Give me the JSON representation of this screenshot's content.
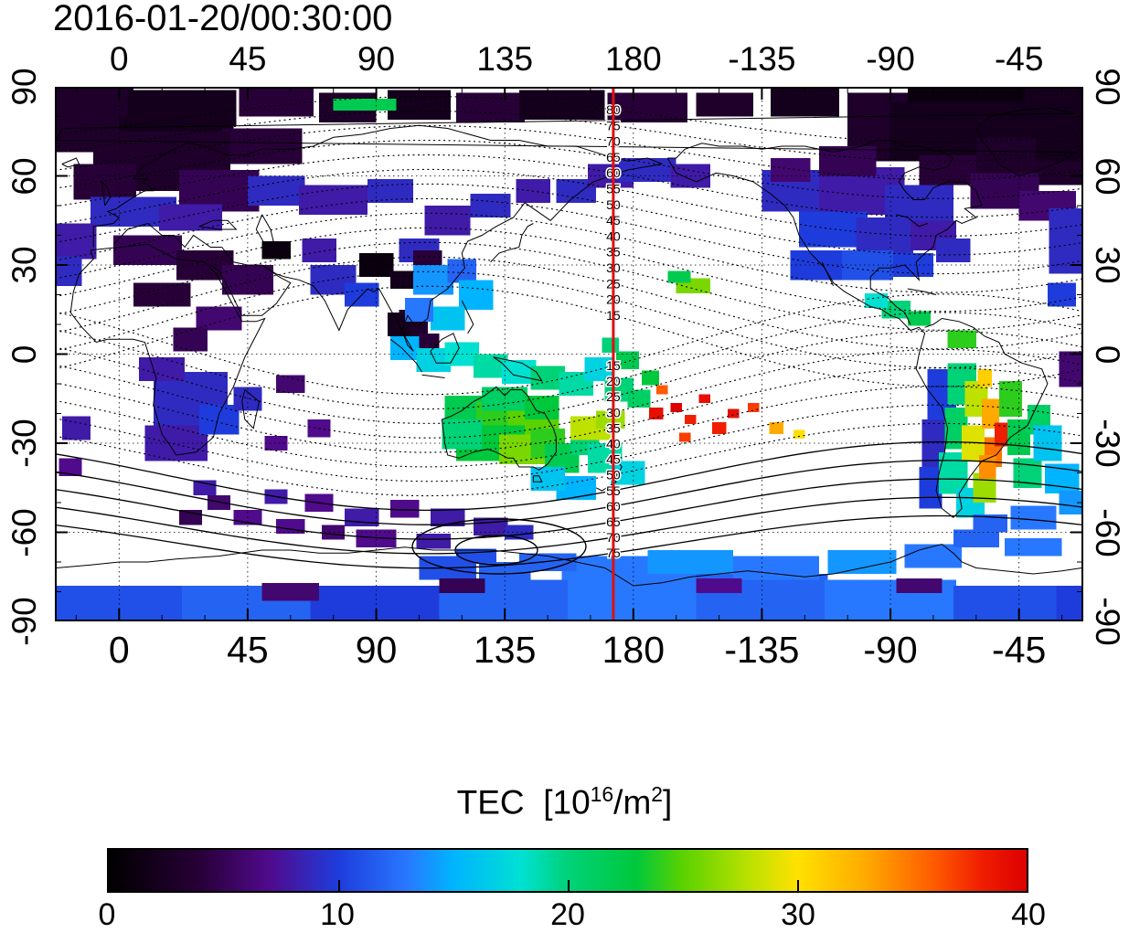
{
  "title": "2016-01-20/00:30:00",
  "axes": {
    "lon_tick_labels": [
      "0",
      "45",
      "90",
      "135",
      "180",
      "-135",
      "-90",
      "-45"
    ],
    "lon_tick_values": [
      0,
      45,
      90,
      135,
      180,
      225,
      270,
      315
    ],
    "lat_tick_labels": [
      "90",
      "60",
      "30",
      "0",
      "-30",
      "-60",
      "-90"
    ],
    "lat_tick_values": [
      90,
      60,
      30,
      0,
      -30,
      -60,
      -90
    ]
  },
  "red_line": {
    "lon": 173,
    "color": "#dd1111"
  },
  "contours": {
    "north_labels": [
      80,
      75,
      70,
      65,
      60,
      55,
      50,
      45,
      40,
      35,
      30,
      25,
      20,
      15
    ],
    "south_labels": [
      15,
      20,
      25,
      30,
      35,
      40,
      45,
      50,
      55,
      60,
      65,
      70,
      75
    ],
    "label_lon": 173
  },
  "colorbar": {
    "title_prefix": "TEC  [10",
    "title_sup1": "16",
    "title_mid": "/m",
    "title_sup2": "2",
    "title_suffix": "]",
    "ticks": [
      "0",
      "10",
      "20",
      "30",
      "40"
    ],
    "tick_values": [
      0,
      10,
      20,
      30,
      40
    ],
    "min": 0,
    "max": 40
  },
  "chart_data": {
    "type": "heatmap",
    "title": "2016-01-20/00:30:00",
    "units": "TEC [10^16/m^2]",
    "lon_range": [
      -22.5,
      337.5
    ],
    "lat_range": [
      -90,
      90
    ],
    "lon_ticks": [
      0,
      45,
      90,
      135,
      180,
      -135,
      -90,
      -45
    ],
    "lat_ticks": [
      90,
      60,
      30,
      0,
      -30,
      -60,
      -90
    ],
    "colorbar_range": [
      0,
      40
    ],
    "colormap_stops": [
      [
        0,
        "#000000"
      ],
      [
        4,
        "#280038"
      ],
      [
        7,
        "#500a8c"
      ],
      [
        10,
        "#1e3cdc"
      ],
      [
        13,
        "#2878ff"
      ],
      [
        15,
        "#00b4ff"
      ],
      [
        18,
        "#00e1d2"
      ],
      [
        20,
        "#00d278"
      ],
      [
        23,
        "#00c83c"
      ],
      [
        25,
        "#5ad200"
      ],
      [
        28,
        "#bee100"
      ],
      [
        30,
        "#ffe100"
      ],
      [
        33,
        "#ffaa00"
      ],
      [
        36,
        "#ff5a00"
      ],
      [
        38,
        "#f01e00"
      ],
      [
        40,
        "#dc0000"
      ]
    ],
    "patch_format": [
      "lon_center_deg",
      "lat_center_deg",
      "width_deg",
      "height_deg",
      "tec_value"
    ],
    "patches": [
      [
        -10,
        84,
        30,
        12,
        3
      ],
      [
        22,
        83,
        38,
        12,
        2
      ],
      [
        55,
        85,
        26,
        10,
        4
      ],
      [
        80,
        83,
        20,
        10,
        3
      ],
      [
        105,
        84,
        22,
        10,
        2
      ],
      [
        130,
        83,
        24,
        10,
        4
      ],
      [
        155,
        84,
        30,
        10,
        2
      ],
      [
        185,
        83,
        28,
        10,
        4
      ],
      [
        212,
        84,
        20,
        8,
        3
      ],
      [
        240,
        85,
        24,
        10,
        2
      ],
      [
        268,
        83,
        26,
        10,
        3
      ],
      [
        300,
        83,
        48,
        14,
        1
      ],
      [
        330,
        84,
        26,
        12,
        2
      ],
      [
        86,
        84,
        22,
        4,
        22
      ],
      [
        -12,
        75,
        28,
        14,
        3
      ],
      [
        20,
        74,
        40,
        12,
        2
      ],
      [
        50,
        70,
        28,
        12,
        4
      ],
      [
        15,
        65,
        48,
        20,
        3
      ],
      [
        35,
        55,
        28,
        14,
        5
      ],
      [
        -5,
        58,
        22,
        12,
        4
      ],
      [
        270,
        72,
        30,
        14,
        3
      ],
      [
        300,
        75,
        60,
        20,
        2
      ],
      [
        320,
        65,
        40,
        16,
        3
      ],
      [
        335,
        72,
        28,
        14,
        2
      ],
      [
        290,
        62,
        20,
        10,
        4
      ],
      [
        310,
        55,
        24,
        12,
        5
      ],
      [
        325,
        50,
        20,
        10,
        6
      ],
      [
        5,
        48,
        30,
        10,
        9
      ],
      [
        25,
        46,
        22,
        9,
        8
      ],
      [
        -15,
        38,
        14,
        12,
        8
      ],
      [
        -18,
        28,
        10,
        10,
        9
      ],
      [
        55,
        55,
        20,
        10,
        9
      ],
      [
        75,
        52,
        24,
        10,
        8
      ],
      [
        95,
        55,
        16,
        8,
        9
      ],
      [
        115,
        45,
        16,
        10,
        8
      ],
      [
        130,
        50,
        14,
        8,
        9
      ],
      [
        145,
        55,
        12,
        8,
        8
      ],
      [
        160,
        55,
        14,
        8,
        9
      ],
      [
        172,
        60,
        16,
        8,
        8
      ],
      [
        185,
        62,
        20,
        8,
        9
      ],
      [
        200,
        60,
        14,
        8,
        8
      ],
      [
        70,
        35,
        12,
        8,
        8
      ],
      [
        105,
        35,
        14,
        8,
        9
      ],
      [
        75,
        25,
        16,
        10,
        9
      ],
      [
        85,
        20,
        12,
        8,
        10
      ],
      [
        10,
        35,
        24,
        10,
        5
      ],
      [
        30,
        30,
        20,
        10,
        4
      ],
      [
        45,
        25,
        18,
        10,
        5
      ],
      [
        15,
        20,
        20,
        8,
        4
      ],
      [
        35,
        12,
        16,
        8,
        6
      ],
      [
        55,
        35,
        10,
        6,
        1
      ],
      [
        90,
        30,
        12,
        8,
        1
      ],
      [
        100,
        25,
        10,
        6,
        2
      ],
      [
        25,
        5,
        12,
        8,
        5
      ],
      [
        103,
        8,
        10,
        14,
        3
      ],
      [
        108,
        2,
        8,
        10,
        4
      ],
      [
        98,
        10,
        8,
        8,
        2
      ],
      [
        108,
        30,
        10,
        10,
        4
      ],
      [
        25,
        -15,
        26,
        18,
        9
      ],
      [
        20,
        -30,
        22,
        12,
        8
      ],
      [
        35,
        -22,
        14,
        10,
        10
      ],
      [
        15,
        -5,
        16,
        8,
        8
      ],
      [
        45,
        -15,
        10,
        8,
        9
      ],
      [
        30,
        -45,
        8,
        5,
        8
      ],
      [
        -15,
        -25,
        10,
        8,
        8
      ],
      [
        -17,
        -38,
        8,
        6,
        7
      ],
      [
        60,
        -10,
        10,
        6,
        6
      ],
      [
        70,
        -25,
        8,
        6,
        7
      ],
      [
        55,
        -30,
        8,
        5,
        7
      ],
      [
        110,
        25,
        14,
        10,
        14
      ],
      [
        120,
        28,
        10,
        8,
        12
      ],
      [
        125,
        20,
        12,
        10,
        15
      ],
      [
        115,
        12,
        12,
        8,
        16
      ],
      [
        105,
        15,
        10,
        8,
        13
      ],
      [
        100,
        2,
        10,
        8,
        15
      ],
      [
        110,
        -2,
        12,
        8,
        17
      ],
      [
        120,
        0,
        12,
        8,
        18
      ],
      [
        130,
        -4,
        12,
        8,
        19
      ],
      [
        140,
        -6,
        12,
        8,
        18
      ],
      [
        150,
        -8,
        12,
        8,
        20
      ],
      [
        160,
        -10,
        12,
        8,
        19
      ],
      [
        168,
        -5,
        10,
        8,
        17
      ],
      [
        175,
        -12,
        10,
        8,
        20
      ],
      [
        178,
        -2,
        8,
        6,
        22
      ],
      [
        172,
        3,
        6,
        5,
        20
      ],
      [
        182,
        -15,
        8,
        6,
        21
      ],
      [
        186,
        -8,
        6,
        5,
        23
      ],
      [
        125,
        -20,
        22,
        12,
        22
      ],
      [
        135,
        -22,
        20,
        12,
        24
      ],
      [
        145,
        -25,
        18,
        12,
        25
      ],
      [
        130,
        -30,
        24,
        12,
        23
      ],
      [
        142,
        -32,
        18,
        10,
        26
      ],
      [
        150,
        -30,
        12,
        10,
        24
      ],
      [
        120,
        -27,
        14,
        10,
        20
      ],
      [
        135,
        -15,
        16,
        8,
        21
      ],
      [
        148,
        -18,
        12,
        8,
        23
      ],
      [
        155,
        -35,
        12,
        10,
        22
      ],
      [
        163,
        -30,
        10,
        8,
        20
      ],
      [
        170,
        -35,
        12,
        10,
        19
      ],
      [
        178,
        -40,
        12,
        8,
        17
      ],
      [
        160,
        -45,
        14,
        8,
        15
      ],
      [
        150,
        -42,
        12,
        8,
        16
      ],
      [
        165,
        -25,
        14,
        8,
        28
      ],
      [
        172,
        -22,
        10,
        6,
        27
      ],
      [
        188,
        -20,
        5,
        4,
        39
      ],
      [
        195,
        -18,
        4,
        3,
        40
      ],
      [
        200,
        -22,
        4,
        3,
        38
      ],
      [
        205,
        -15,
        4,
        3,
        39
      ],
      [
        210,
        -25,
        5,
        4,
        38
      ],
      [
        198,
        -28,
        4,
        3,
        37
      ],
      [
        215,
        -20,
        4,
        3,
        39
      ],
      [
        190,
        -12,
        4,
        3,
        36
      ],
      [
        230,
        -25,
        5,
        4,
        33
      ],
      [
        238,
        -27,
        4,
        3,
        30
      ],
      [
        222,
        -18,
        4,
        3,
        37
      ],
      [
        201,
        23,
        12,
        5,
        26
      ],
      [
        196,
        26,
        8,
        4,
        22
      ],
      [
        240,
        55,
        30,
        14,
        9
      ],
      [
        260,
        55,
        30,
        16,
        8
      ],
      [
        280,
        50,
        24,
        14,
        9
      ],
      [
        250,
        42,
        24,
        12,
        10
      ],
      [
        268,
        40,
        20,
        12,
        9
      ],
      [
        285,
        40,
        16,
        10,
        8
      ],
      [
        245,
        30,
        20,
        10,
        10
      ],
      [
        262,
        30,
        18,
        10,
        11
      ],
      [
        278,
        30,
        14,
        8,
        10
      ],
      [
        292,
        35,
        12,
        8,
        9
      ],
      [
        255,
        65,
        20,
        10,
        5
      ],
      [
        235,
        62,
        14,
        8,
        6
      ],
      [
        332,
        38,
        13,
        22,
        9
      ],
      [
        334,
        -5,
        10,
        12,
        6
      ],
      [
        330,
        20,
        10,
        8,
        10
      ],
      [
        272,
        15,
        10,
        6,
        20
      ],
      [
        280,
        12,
        8,
        5,
        22
      ],
      [
        265,
        18,
        8,
        5,
        18
      ],
      [
        295,
        5,
        10,
        6,
        24
      ],
      [
        288,
        -15,
        10,
        20,
        10
      ],
      [
        285,
        -30,
        8,
        16,
        9
      ],
      [
        284,
        -45,
        8,
        14,
        10
      ],
      [
        295,
        -10,
        10,
        14,
        20
      ],
      [
        293,
        -25,
        8,
        14,
        21
      ],
      [
        292,
        -40,
        10,
        14,
        19
      ],
      [
        298,
        -50,
        10,
        10,
        17
      ],
      [
        300,
        -15,
        8,
        12,
        28
      ],
      [
        299,
        -30,
        8,
        12,
        29
      ],
      [
        303,
        -45,
        8,
        10,
        27
      ],
      [
        305,
        -20,
        6,
        10,
        33
      ],
      [
        306,
        -33,
        6,
        10,
        35
      ],
      [
        303,
        -8,
        5,
        6,
        31
      ],
      [
        309,
        -27,
        5,
        8,
        38
      ],
      [
        304,
        -38,
        6,
        8,
        34
      ],
      [
        312,
        -15,
        8,
        12,
        24
      ],
      [
        315,
        -28,
        8,
        12,
        22
      ],
      [
        318,
        -40,
        10,
        10,
        20
      ],
      [
        322,
        -22,
        8,
        10,
        21
      ],
      [
        325,
        -30,
        10,
        12,
        16
      ],
      [
        330,
        -42,
        12,
        10,
        15
      ],
      [
        335,
        -50,
        12,
        8,
        14
      ],
      [
        320,
        -55,
        16,
        8,
        13
      ],
      [
        305,
        -57,
        12,
        6,
        12
      ],
      [
        70,
        -50,
        10,
        6,
        7
      ],
      [
        85,
        -55,
        12,
        6,
        8
      ],
      [
        100,
        -52,
        10,
        6,
        7
      ],
      [
        115,
        -55,
        12,
        6,
        8
      ],
      [
        130,
        -58,
        12,
        6,
        8
      ],
      [
        90,
        -62,
        14,
        6,
        7
      ],
      [
        110,
        -63,
        12,
        5,
        8
      ],
      [
        60,
        -58,
        10,
        5,
        7
      ],
      [
        140,
        -60,
        10,
        5,
        9
      ],
      [
        75,
        -60,
        8,
        5,
        6
      ],
      [
        55,
        -48,
        8,
        5,
        8
      ],
      [
        45,
        -55,
        10,
        5,
        7
      ],
      [
        35,
        -50,
        8,
        5,
        6
      ],
      [
        25,
        -55,
        8,
        5,
        5
      ],
      [
        0,
        -84,
        46,
        12,
        11
      ],
      [
        45,
        -84,
        46,
        12,
        12
      ],
      [
        90,
        -84,
        46,
        12,
        10
      ],
      [
        135,
        -83,
        46,
        14,
        12
      ],
      [
        180,
        -82,
        46,
        16,
        13
      ],
      [
        225,
        -82,
        46,
        16,
        12
      ],
      [
        270,
        -83,
        46,
        14,
        13
      ],
      [
        315,
        -84,
        46,
        12,
        11
      ],
      [
        333,
        -84,
        10,
        12,
        10
      ],
      [
        115,
        -72,
        20,
        8,
        11
      ],
      [
        135,
        -74,
        18,
        8,
        12
      ],
      [
        170,
        -72,
        30,
        8,
        13
      ],
      [
        200,
        -70,
        30,
        8,
        14
      ],
      [
        230,
        -72,
        30,
        8,
        13
      ],
      [
        260,
        -70,
        24,
        8,
        14
      ],
      [
        285,
        -68,
        20,
        8,
        13
      ],
      [
        300,
        -62,
        16,
        6,
        12
      ],
      [
        320,
        -65,
        20,
        6,
        13
      ],
      [
        150,
        -70,
        20,
        6,
        12
      ],
      [
        125,
        -68,
        14,
        5,
        11
      ],
      [
        60,
        -80,
        20,
        6,
        6
      ],
      [
        120,
        -78,
        16,
        5,
        5
      ],
      [
        210,
        -78,
        16,
        5,
        7
      ],
      [
        280,
        -78,
        16,
        5,
        6
      ]
    ]
  }
}
